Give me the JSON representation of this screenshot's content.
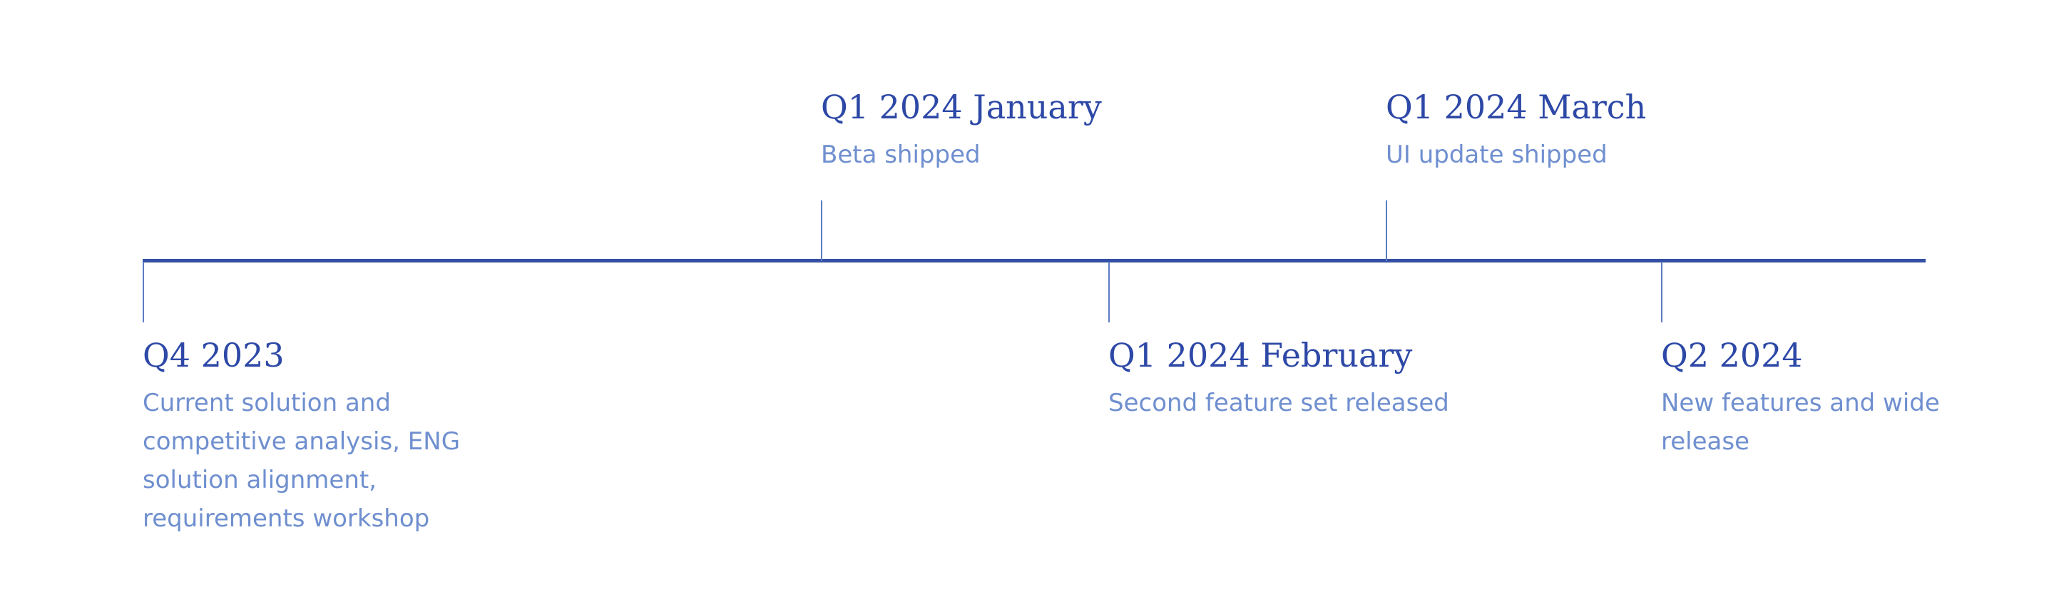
{
  "colors": {
    "axis": "#3350a4",
    "tick": "#5e7cc4",
    "date_text": "#2d48a6",
    "description_text": "#6f8fcf",
    "background": "#ffffff"
  },
  "milestones": [
    {
      "date": "Q4 2023",
      "description": "Current solution and competitive analysis, ENG solution alignment, requirements workshop",
      "side": "below"
    },
    {
      "date": "Q1 2024 January",
      "description": "Beta shipped",
      "side": "above"
    },
    {
      "date": "Q1 2024 February",
      "description": "Second feature set released",
      "side": "below"
    },
    {
      "date": "Q1 2024 March",
      "description": "UI update shipped",
      "side": "above"
    },
    {
      "date": "Q2 2024",
      "description": "New features and wide release",
      "side": "below"
    }
  ]
}
